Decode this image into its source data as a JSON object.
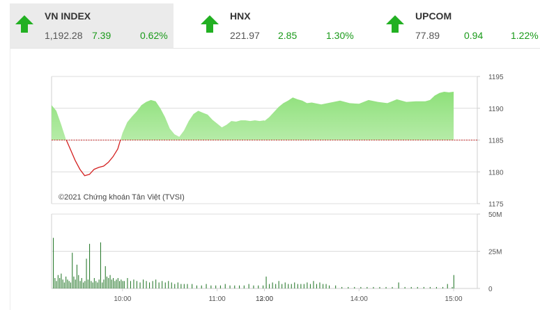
{
  "tickers": [
    {
      "name": "VN INDEX",
      "value": "1,192.28",
      "change": "7.39",
      "pct": "0.62%",
      "active": true
    },
    {
      "name": "HNX",
      "value": "221.97",
      "change": "2.85",
      "pct": "1.30%",
      "active": false
    },
    {
      "name": "UPCOM",
      "value": "77.89",
      "change": "0.94",
      "pct": "1.22%",
      "active": false
    }
  ],
  "colors": {
    "up": "#1a9a1a",
    "arrow": "#22b022",
    "area_top": "#8ee07a",
    "area_bottom": "#eafbe4",
    "below_ref": "#d42020",
    "reference": "#c62828",
    "volume": "#2e7d32"
  },
  "chart_data": {
    "type": "area",
    "copyright": "©2021 Chứng khoán Tân Việt (TVSI)",
    "reference_value": 1185,
    "price": {
      "ylim": [
        1175,
        1195
      ],
      "yticks": [
        1195,
        1190,
        1185,
        1180,
        1175
      ],
      "x_time": [
        "09:15",
        "09:18",
        "09:21",
        "09:24",
        "09:27",
        "09:30",
        "09:33",
        "09:36",
        "09:39",
        "09:42",
        "09:45",
        "09:48",
        "09:51",
        "09:54",
        "09:57",
        "10:00",
        "10:03",
        "10:06",
        "10:09",
        "10:12",
        "10:15",
        "10:18",
        "10:21",
        "10:24",
        "10:27",
        "10:30",
        "10:33",
        "10:36",
        "10:39",
        "10:42",
        "10:45",
        "10:48",
        "10:51",
        "10:54",
        "10:57",
        "11:00",
        "11:03",
        "11:06",
        "11:09",
        "11:12",
        "11:15",
        "11:18",
        "11:21",
        "11:24",
        "11:27",
        "11:30",
        "13:00",
        "13:03",
        "13:06",
        "13:09",
        "13:12",
        "13:15",
        "13:18",
        "13:21",
        "13:24",
        "13:27",
        "13:30",
        "13:36",
        "13:42",
        "13:48",
        "13:54",
        "14:00",
        "14:06",
        "14:12",
        "14:18",
        "14:24",
        "14:30",
        "14:36",
        "14:42",
        "14:45",
        "14:48",
        "14:51",
        "14:54",
        "14:57",
        "15:00"
      ],
      "values": [
        1190.5,
        1189.6,
        1187.5,
        1185.2,
        1183.5,
        1181.8,
        1180.4,
        1179.4,
        1179.6,
        1180.4,
        1180.7,
        1180.9,
        1181.5,
        1182.4,
        1183.6,
        1186.1,
        1187.8,
        1188.7,
        1189.5,
        1190.5,
        1191.0,
        1191.3,
        1191.1,
        1190.0,
        1188.6,
        1186.8,
        1185.9,
        1185.5,
        1186.5,
        1188.0,
        1189.1,
        1189.6,
        1189.3,
        1189.0,
        1188.2,
        1187.6,
        1187.0,
        1187.4,
        1188.0,
        1187.9,
        1188.1,
        1188.1,
        1188.0,
        1188.1,
        1188.0,
        1188.1,
        1188.0,
        1188.6,
        1189.4,
        1190.2,
        1190.8,
        1191.2,
        1191.7,
        1191.4,
        1191.2,
        1190.8,
        1190.9,
        1190.6,
        1190.9,
        1191.2,
        1190.8,
        1190.7,
        1191.3,
        1191.0,
        1190.8,
        1191.4,
        1191.0,
        1191.1,
        1191.1,
        1191.3,
        1192.0,
        1192.4,
        1192.6,
        1192.5,
        1192.6
      ]
    },
    "volume": {
      "ylim": [
        0,
        50
      ],
      "yticks": [
        "50M",
        "25M",
        "0"
      ],
      "ytick_values": [
        50,
        25,
        0
      ],
      "bars": [
        [
          "09:15",
          34
        ],
        [
          "09:16",
          7
        ],
        [
          "09:17",
          5
        ],
        [
          "09:18",
          9
        ],
        [
          "09:19",
          7
        ],
        [
          "09:20",
          10
        ],
        [
          "09:21",
          6
        ],
        [
          "09:22",
          4
        ],
        [
          "09:23",
          8
        ],
        [
          "09:24",
          6
        ],
        [
          "09:25",
          5
        ],
        [
          "09:26",
          4
        ],
        [
          "09:27",
          24
        ],
        [
          "09:28",
          8
        ],
        [
          "09:29",
          6
        ],
        [
          "09:30",
          16
        ],
        [
          "09:31",
          9
        ],
        [
          "09:32",
          5
        ],
        [
          "09:33",
          7
        ],
        [
          "09:34",
          4
        ],
        [
          "09:35",
          5
        ],
        [
          "09:36",
          20
        ],
        [
          "09:37",
          6
        ],
        [
          "09:38",
          30
        ],
        [
          "09:39",
          5
        ],
        [
          "09:40",
          4
        ],
        [
          "09:41",
          7
        ],
        [
          "09:42",
          5
        ],
        [
          "09:43",
          4
        ],
        [
          "09:44",
          6
        ],
        [
          "09:45",
          31
        ],
        [
          "09:46",
          4
        ],
        [
          "09:47",
          6
        ],
        [
          "09:48",
          15
        ],
        [
          "09:49",
          8
        ],
        [
          "09:50",
          7
        ],
        [
          "09:51",
          9
        ],
        [
          "09:52",
          6
        ],
        [
          "09:53",
          7
        ],
        [
          "09:54",
          5
        ],
        [
          "09:55",
          6
        ],
        [
          "09:56",
          7
        ],
        [
          "09:57",
          5
        ],
        [
          "09:58",
          6
        ],
        [
          "09:59",
          5
        ],
        [
          "10:00",
          5
        ],
        [
          "10:02",
          7
        ],
        [
          "10:04",
          5
        ],
        [
          "10:06",
          6
        ],
        [
          "10:08",
          5
        ],
        [
          "10:10",
          4
        ],
        [
          "10:12",
          6
        ],
        [
          "10:14",
          5
        ],
        [
          "10:16",
          4
        ],
        [
          "10:18",
          5
        ],
        [
          "10:20",
          6
        ],
        [
          "10:22",
          4
        ],
        [
          "10:24",
          5
        ],
        [
          "10:26",
          4
        ],
        [
          "10:28",
          5
        ],
        [
          "10:30",
          4
        ],
        [
          "10:32",
          3
        ],
        [
          "10:34",
          4
        ],
        [
          "10:36",
          3
        ],
        [
          "10:38",
          3
        ],
        [
          "10:40",
          3
        ],
        [
          "10:43",
          3
        ],
        [
          "10:46",
          2
        ],
        [
          "10:49",
          2
        ],
        [
          "10:52",
          3
        ],
        [
          "10:55",
          2
        ],
        [
          "10:58",
          2
        ],
        [
          "11:01",
          2
        ],
        [
          "11:04",
          3
        ],
        [
          "11:07",
          2
        ],
        [
          "11:10",
          2
        ],
        [
          "11:13",
          2
        ],
        [
          "11:16",
          2
        ],
        [
          "11:19",
          3
        ],
        [
          "11:22",
          2
        ],
        [
          "11:25",
          2
        ],
        [
          "11:28",
          2
        ],
        [
          "11:30",
          2
        ],
        [
          "13:00",
          8
        ],
        [
          "13:02",
          3
        ],
        [
          "13:04",
          4
        ],
        [
          "13:06",
          3
        ],
        [
          "13:08",
          5
        ],
        [
          "13:10",
          3
        ],
        [
          "13:12",
          4
        ],
        [
          "13:14",
          3
        ],
        [
          "13:16",
          3
        ],
        [
          "13:18",
          4
        ],
        [
          "13:20",
          3
        ],
        [
          "13:22",
          3
        ],
        [
          "13:24",
          3
        ],
        [
          "13:26",
          4
        ],
        [
          "13:28",
          3
        ],
        [
          "13:30",
          5
        ],
        [
          "13:32",
          3
        ],
        [
          "13:34",
          4
        ],
        [
          "13:36",
          3
        ],
        [
          "13:38",
          3
        ],
        [
          "13:40",
          2
        ],
        [
          "13:44",
          2
        ],
        [
          "13:48",
          1
        ],
        [
          "13:52",
          1
        ],
        [
          "13:56",
          1
        ],
        [
          "14:00",
          1
        ],
        [
          "14:04",
          1
        ],
        [
          "14:08",
          1
        ],
        [
          "14:12",
          1
        ],
        [
          "14:16",
          1
        ],
        [
          "14:20",
          1
        ],
        [
          "14:24",
          4
        ],
        [
          "14:28",
          1
        ],
        [
          "14:32",
          1
        ],
        [
          "14:36",
          1
        ],
        [
          "14:40",
          1
        ],
        [
          "14:44",
          1
        ],
        [
          "14:48",
          1
        ],
        [
          "14:52",
          1
        ],
        [
          "14:55",
          3
        ],
        [
          "14:58",
          1
        ],
        [
          "14:59",
          9
        ]
      ]
    },
    "xticks": [
      "10:00",
      "11:00",
      "12:00",
      "13:00",
      "14:00",
      "15:00"
    ]
  }
}
